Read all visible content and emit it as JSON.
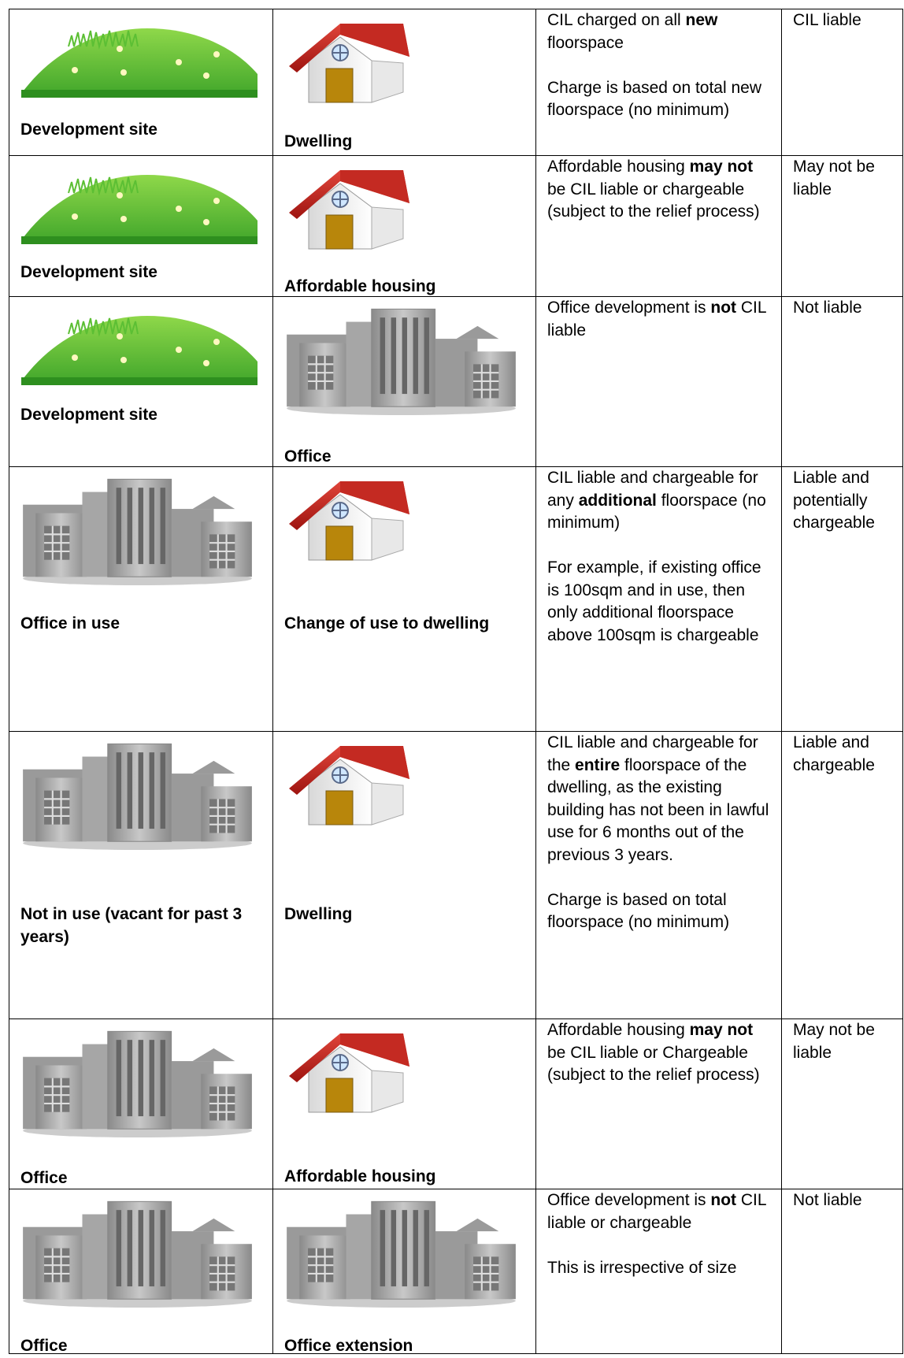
{
  "table": {
    "rows": [
      {
        "site": "Development site",
        "development": "Dwelling",
        "description": [
          [
            [
              {
                "text": "CIL charged on all "
              },
              {
                "text": "new",
                "bold": true
              },
              {
                "text": " floorspace"
              }
            ]
          ],
          [
            [
              {
                "text": "Charge is based on total new floorspace (no minimum)"
              }
            ]
          ]
        ],
        "liability": "CIL liable"
      },
      {
        "site": "Development site",
        "development": "Affordable housing",
        "description": [
          [
            [
              {
                "text": "Affordable housing "
              },
              {
                "text": "may not",
                "bold": true
              },
              {
                "text": " be CIL liable or chargeable"
              }
            ],
            [
              {
                "text": "(subject to the relief process)"
              }
            ]
          ]
        ],
        "liability": "May not be liable"
      },
      {
        "site": "Development site",
        "development": "Office",
        "description": [
          [
            [
              {
                "text": "Office development is "
              },
              {
                "text": "not",
                "bold": true
              },
              {
                "text": " CIL liable"
              }
            ]
          ]
        ],
        "liability": "Not liable"
      },
      {
        "site": "Office in use",
        "development": "Change of use to dwelling",
        "description": [
          [
            [
              {
                "text": "CIL liable and chargeable for any "
              },
              {
                "text": "additional",
                "bold": true
              },
              {
                "text": " floorspace (no minimum)"
              }
            ]
          ],
          [
            [
              {
                "text": "For example, if existing office is 100sqm and in use, then only additional floorspace above 100sqm is chargeable"
              }
            ]
          ]
        ],
        "liability": "Liable and potentially chargeable"
      },
      {
        "site": "Not in use (vacant for past 3 years)",
        "development": "Dwelling",
        "description": [
          [
            [
              {
                "text": "CIL liable and chargeable for the "
              },
              {
                "text": "entire",
                "bold": true
              },
              {
                "text": " floorspace of the dwelling, as the existing building has not been in lawful use for 6 months out of the previous 3 years."
              }
            ]
          ],
          [
            [
              {
                "text": "Charge is based on total floorspace (no minimum)"
              }
            ]
          ]
        ],
        "liability": "Liable and chargeable"
      },
      {
        "site": "Office",
        "development": "Affordable housing",
        "description": [
          [
            [
              {
                "text": "Affordable housing "
              },
              {
                "text": "may not",
                "bold": true
              },
              {
                "text": " be CIL liable or Chargeable"
              }
            ],
            [
              {
                "text": "(subject to the relief process)"
              }
            ]
          ]
        ],
        "liability": "May not be liable"
      },
      {
        "site": "Office",
        "development": "Office extension",
        "description": [
          [
            [
              {
                "text": "Office development is "
              },
              {
                "text": "not",
                "bold": true
              },
              {
                "text": " CIL liable or chargeable"
              }
            ]
          ],
          [
            [
              {
                "text": "This is irrespective of size"
              }
            ]
          ]
        ],
        "liability": "Not liable"
      }
    ]
  }
}
